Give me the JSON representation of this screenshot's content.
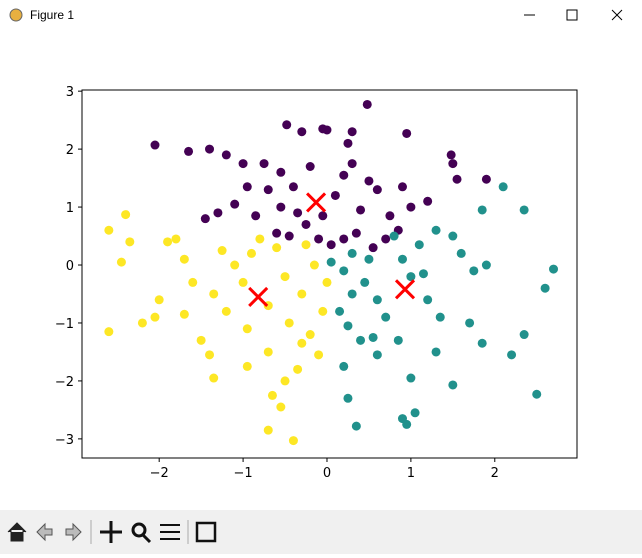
{
  "window_title": "Figure 1",
  "chart_data": {
    "type": "scatter",
    "xlim": [
      -2.92,
      2.98
    ],
    "ylim": [
      -3.33,
      3.02
    ],
    "xticks": [
      {
        "value": -2,
        "label": "−2"
      },
      {
        "value": -1,
        "label": "−1"
      },
      0,
      1,
      2
    ],
    "yticks": [
      {
        "value": -3,
        "label": "−3"
      },
      {
        "value": -2,
        "label": "−2"
      },
      {
        "value": -1,
        "label": "−1"
      },
      0,
      1,
      2,
      3
    ],
    "series": [
      {
        "color": "#440154",
        "x": [
          -2.05,
          -1.65,
          -1.4,
          -1.2,
          -1.0,
          -0.75,
          -0.55,
          -0.48,
          -0.3,
          -0.05,
          0.0,
          0.3,
          0.48,
          0.25,
          0.3,
          0.95,
          1.48,
          1.5,
          1.9,
          1.55,
          1.2,
          0.9,
          0.6,
          0.5,
          0.2,
          -0.2,
          -0.4,
          -0.7,
          -0.95,
          -1.1,
          -1.3,
          -1.45,
          -0.85,
          -0.55,
          -0.35,
          -0.25,
          -0.1,
          0.05,
          0.2,
          0.35,
          0.55,
          0.7,
          0.75,
          1.0,
          -0.45,
          -0.05,
          0.1,
          -0.6,
          0.4,
          0.85
        ],
        "y": [
          2.07,
          1.96,
          2.0,
          1.9,
          1.75,
          1.75,
          1.6,
          2.42,
          2.3,
          2.35,
          2.33,
          2.3,
          2.77,
          2.1,
          1.75,
          2.27,
          1.9,
          1.75,
          1.48,
          1.48,
          1.1,
          1.35,
          1.3,
          1.45,
          1.55,
          1.7,
          1.35,
          1.3,
          1.35,
          1.05,
          0.9,
          0.8,
          0.85,
          1.0,
          0.9,
          0.7,
          0.45,
          0.35,
          0.45,
          0.55,
          0.3,
          0.45,
          0.85,
          1.0,
          0.5,
          0.85,
          1.2,
          0.55,
          0.95,
          0.6
        ]
      },
      {
        "color": "#21918c",
        "x": [
          0.05,
          0.2,
          0.3,
          0.45,
          0.5,
          0.6,
          0.7,
          0.8,
          0.9,
          1.0,
          1.1,
          1.2,
          1.3,
          1.35,
          1.5,
          1.6,
          1.75,
          1.9,
          1.85,
          2.1,
          2.35,
          2.7,
          2.6,
          2.35,
          2.2,
          2.5,
          1.85,
          1.5,
          1.3,
          1.0,
          1.05,
          0.9,
          0.95,
          0.35,
          0.25,
          0.2,
          0.4,
          0.15,
          0.6,
          0.55,
          1.15,
          0.3,
          0.85,
          0.25,
          1.7
        ],
        "y": [
          0.05,
          -0.1,
          0.2,
          -0.3,
          0.1,
          -0.6,
          -0.9,
          0.5,
          0.1,
          -0.2,
          0.35,
          -0.6,
          0.6,
          -0.9,
          0.5,
          0.2,
          -0.1,
          0.0,
          0.95,
          1.35,
          0.95,
          -0.07,
          -0.4,
          -1.2,
          -1.55,
          -2.23,
          -1.35,
          -2.07,
          -1.5,
          -1.95,
          -2.55,
          -2.65,
          -2.75,
          -2.78,
          -2.3,
          -1.75,
          -1.3,
          -0.8,
          -1.55,
          -1.25,
          -0.15,
          -0.5,
          -1.3,
          -1.05,
          -1.0
        ]
      },
      {
        "color": "#fde725",
        "x": [
          -2.6,
          -2.4,
          -2.35,
          -2.45,
          -2.6,
          -2.2,
          -2.0,
          -2.05,
          -1.9,
          -1.7,
          -1.6,
          -1.7,
          -1.5,
          -1.4,
          -1.35,
          -1.35,
          -1.2,
          -1.1,
          -1.0,
          -0.9,
          -0.95,
          -0.7,
          -0.7,
          -0.6,
          -0.5,
          -0.45,
          -0.3,
          -0.2,
          -0.35,
          -0.5,
          -0.65,
          -0.55,
          -0.7,
          -0.4,
          -0.1,
          -0.05,
          -0.15,
          0.0,
          -0.8,
          -1.8,
          -1.25,
          -0.25,
          -0.95,
          -0.3
        ],
        "y": [
          0.6,
          0.87,
          0.4,
          0.05,
          -1.15,
          -1.0,
          -0.6,
          -0.9,
          0.4,
          0.1,
          -0.3,
          -0.85,
          -1.3,
          -1.55,
          -1.95,
          -0.5,
          -0.8,
          0.0,
          -0.3,
          0.2,
          -1.1,
          -1.5,
          -0.7,
          0.3,
          -0.2,
          -1.0,
          -0.5,
          -1.2,
          -1.8,
          -2.0,
          -2.25,
          -2.45,
          -2.85,
          -3.03,
          -1.55,
          -0.8,
          0.0,
          -0.3,
          0.45,
          0.45,
          0.25,
          0.35,
          -1.75,
          -1.35
        ]
      }
    ],
    "centroids": {
      "color": "#ff0000",
      "x": [
        -0.82,
        -0.13,
        0.93
      ],
      "y": [
        -0.55,
        1.08,
        -0.42
      ]
    }
  }
}
